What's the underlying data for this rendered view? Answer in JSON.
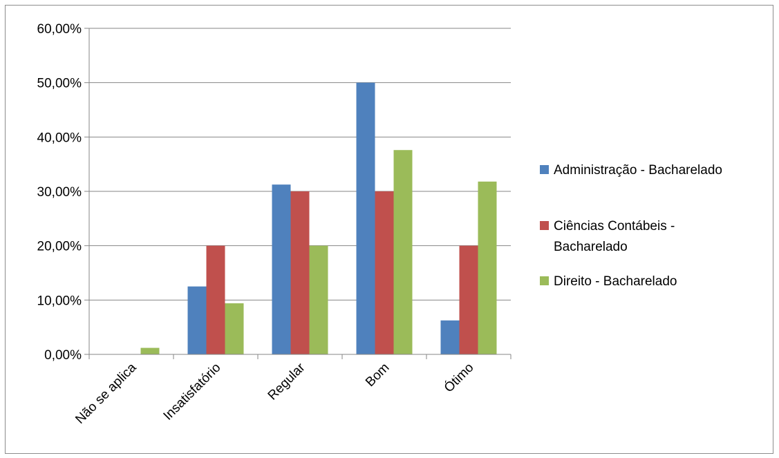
{
  "chart_data": {
    "type": "bar",
    "categories": [
      "Não se aplica",
      "Insatisfatório",
      "Regular",
      "Bom",
      "Ótimo"
    ],
    "series": [
      {
        "name": "Administração - Bacharelado",
        "color": "#4f81bd",
        "values": [
          0,
          12.5,
          31.25,
          50,
          6.25
        ]
      },
      {
        "name": "Ciências Contábeis - Bacharelado",
        "name_lines": [
          "Ciências Contábeis -",
          "Bacharelado"
        ],
        "color": "#c0504d",
        "values": [
          0,
          20,
          30,
          30,
          20
        ]
      },
      {
        "name": "Direito - Bacharelado",
        "color": "#9bbb59",
        "values": [
          1.2,
          9.4,
          20,
          37.6,
          31.8
        ]
      }
    ],
    "y_ticks": [
      "0,00%",
      "10,00%",
      "20,00%",
      "30,00%",
      "40,00%",
      "50,00%",
      "60,00%"
    ],
    "ylim": [
      0,
      60
    ],
    "grid": true,
    "legend_position": "right",
    "title": "",
    "xlabel": "",
    "ylabel": ""
  }
}
